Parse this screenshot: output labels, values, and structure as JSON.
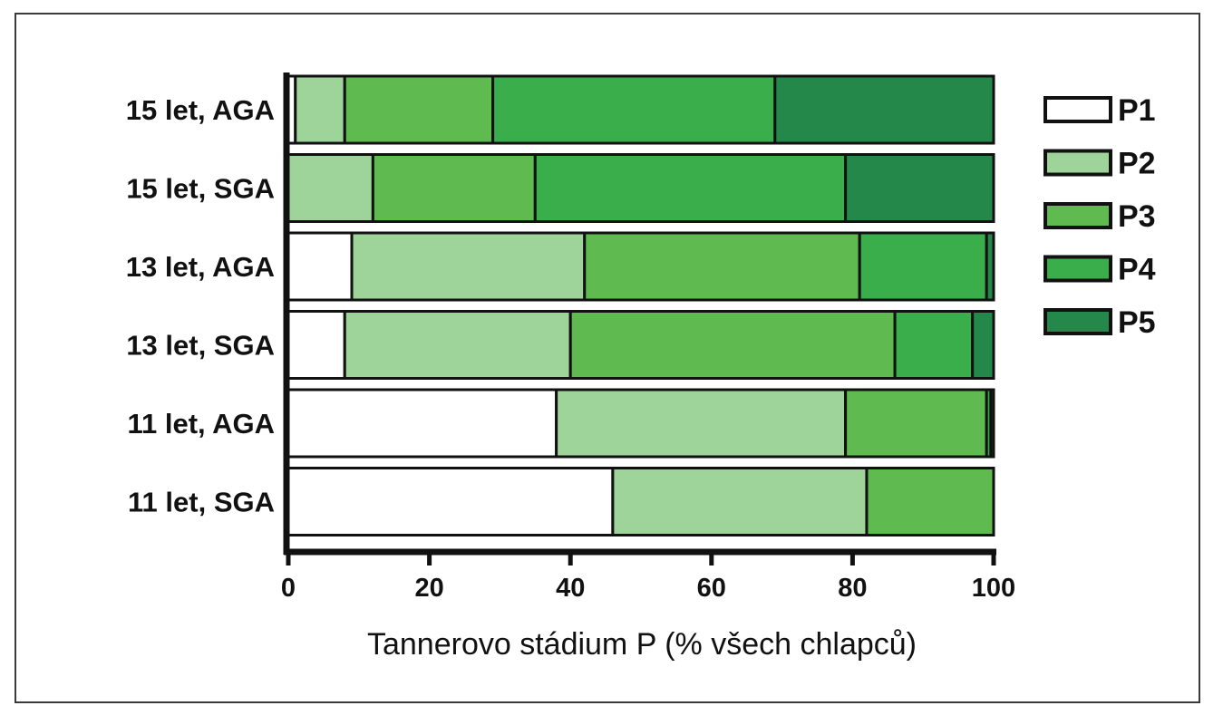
{
  "chart_data": {
    "type": "bar",
    "orientation": "horizontal",
    "stacked": true,
    "categories": [
      "15 let, AGA",
      "15 let, SGA",
      "13 let, AGA",
      "13 let, SGA",
      "11 let, AGA",
      "11 let, SGA"
    ],
    "series": [
      {
        "name": "P1",
        "color": "#ffffff",
        "values": [
          1,
          0,
          9,
          8,
          38,
          46
        ]
      },
      {
        "name": "P2",
        "color": "#9ed39a",
        "values": [
          7,
          12,
          33,
          32,
          41,
          36
        ]
      },
      {
        "name": "P3",
        "color": "#5fba4f",
        "values": [
          21,
          23,
          39,
          46,
          20,
          18
        ]
      },
      {
        "name": "P4",
        "color": "#3aae4a",
        "values": [
          40,
          44,
          18,
          11,
          0.6,
          0
        ]
      },
      {
        "name": "P5",
        "color": "#24884a",
        "values": [
          31,
          21,
          1,
          3,
          0.4,
          0
        ]
      }
    ],
    "xlabel": "Tannerovo stádium P (% všech chlapců)",
    "ylabel": "",
    "xlim": [
      0,
      100
    ],
    "xticks": [
      "0",
      "20",
      "40",
      "60",
      "80",
      "100"
    ],
    "legend_position": "right",
    "grid": false
  }
}
